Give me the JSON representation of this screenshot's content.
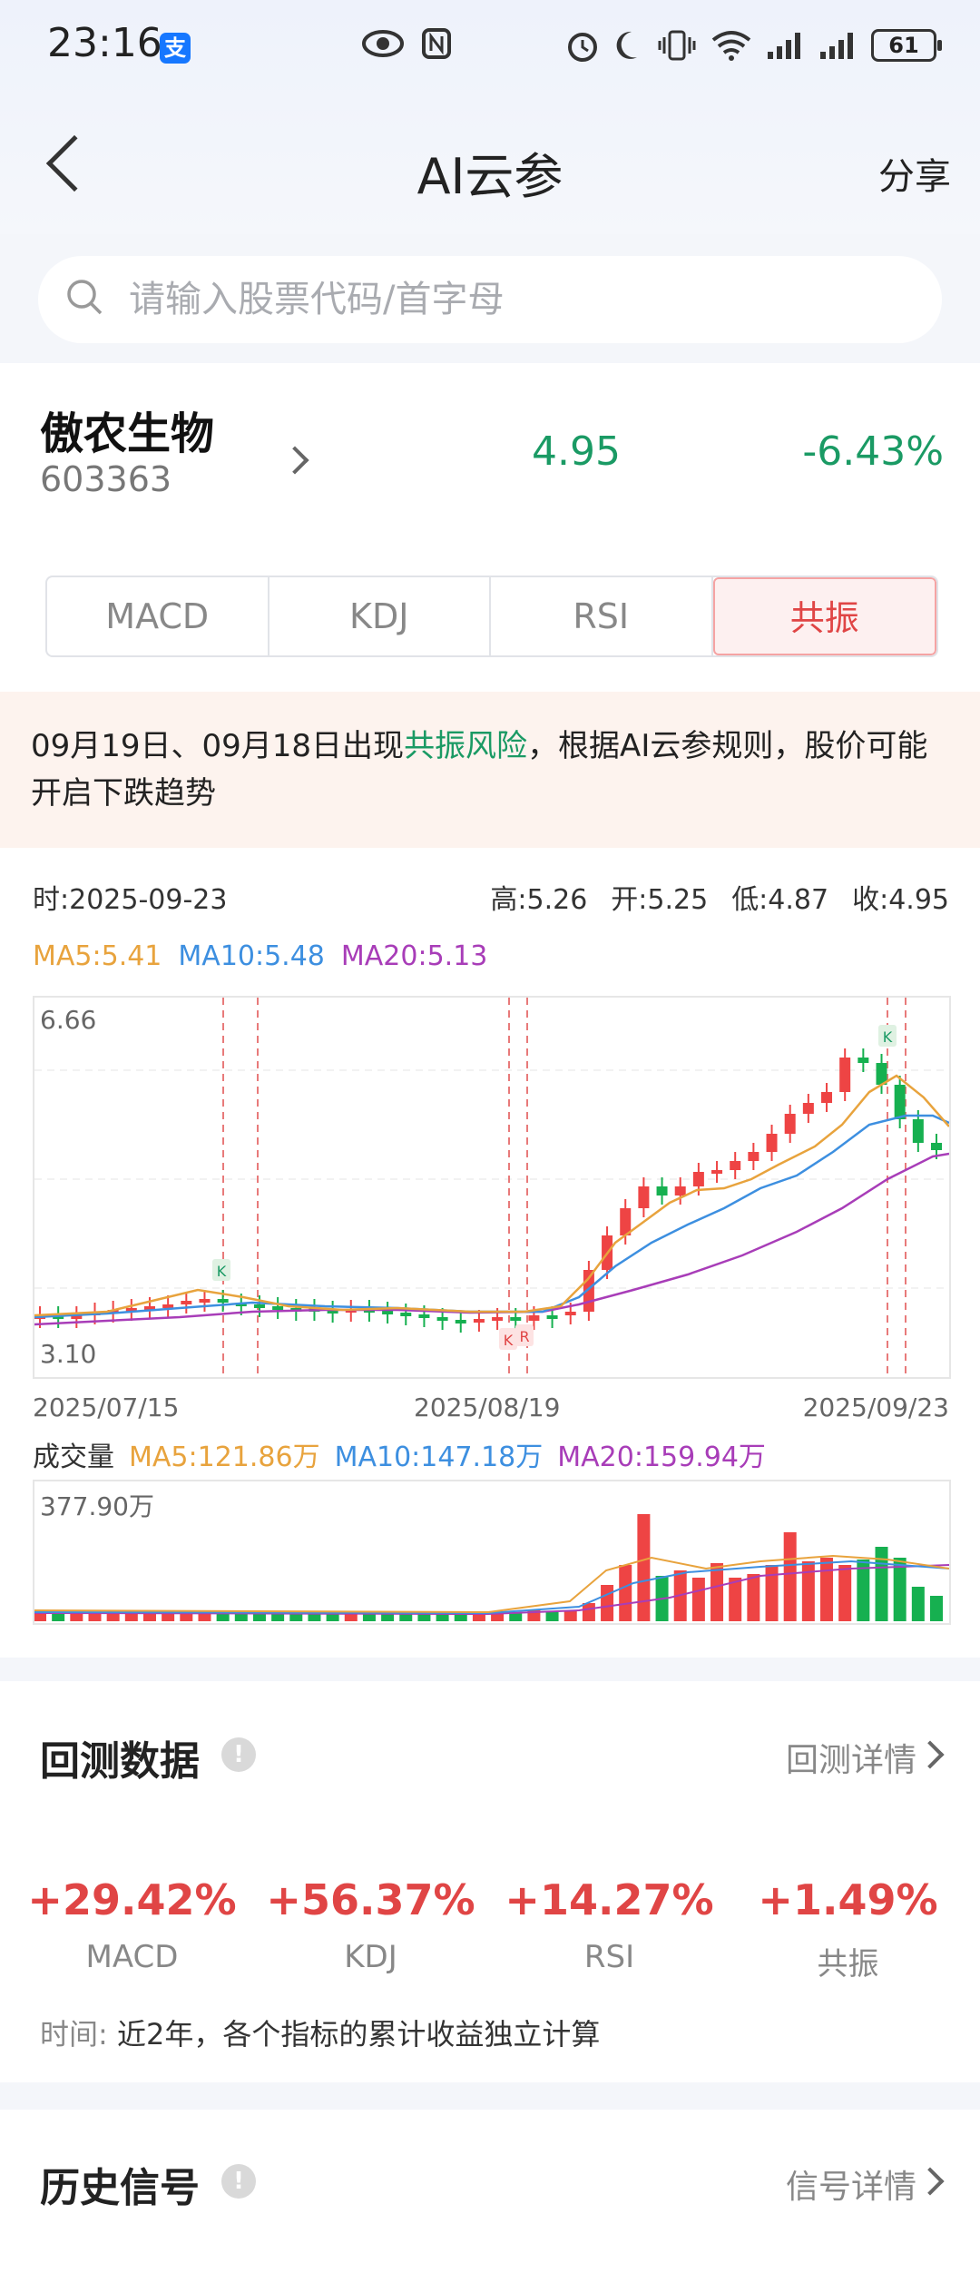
{
  "status_bar": {
    "time": "23:16",
    "battery": "61"
  },
  "header": {
    "title": "AI云参",
    "share": "分享"
  },
  "search": {
    "placeholder": "请输入股票代码/首字母"
  },
  "stock": {
    "name": "傲农生物",
    "code": "603363",
    "price": "4.95",
    "change": "-6.43%"
  },
  "tabs": [
    {
      "label": "MACD"
    },
    {
      "label": "KDJ"
    },
    {
      "label": "RSI"
    },
    {
      "label": "共振"
    }
  ],
  "alert": {
    "prefix": "09月19日、09月18日出现",
    "highlight": "共振风险",
    "suffix": "，根据AI云参规则，股价可能开启下跌趋势"
  },
  "quote": {
    "time": "时:2025-09-23",
    "high": "高:5.26",
    "open": "开:5.25",
    "low": "低:4.87",
    "close": "收:4.95"
  },
  "ma": {
    "ma5": "MA5:5.41",
    "ma10": "MA10:5.48",
    "ma20": "MA20:5.13"
  },
  "colors": {
    "ma5": "#e8a33d",
    "ma10": "#3d8fe0",
    "ma20": "#a83db8",
    "up": "#ee4444",
    "down": "#16b050"
  },
  "chart_data": {
    "type": "candlestick",
    "y_max_label": "6.66",
    "y_min_label": "3.10",
    "x_labels": [
      "2025/07/15",
      "2025/08/19",
      "2025/09/23"
    ],
    "signal_markers": [
      "K",
      "K",
      "R",
      "K"
    ],
    "volume_max_label": "377.90万"
  },
  "volume": {
    "title": "成交量",
    "ma5": "MA5:121.86万",
    "ma10": "MA10:147.18万",
    "ma20": "MA20:159.94万"
  },
  "backtest": {
    "title": "回测数据",
    "detail": "回测详情",
    "items": [
      {
        "value": "+29.42%",
        "label": "MACD"
      },
      {
        "value": "+56.37%",
        "label": "KDJ"
      },
      {
        "value": "+14.27%",
        "label": "RSI"
      },
      {
        "value": "+1.49%",
        "label": "共振"
      }
    ],
    "note_key": "时间:",
    "note_val": "近2年，各个指标的累计收益独立计算"
  },
  "history": {
    "title": "历史信号",
    "detail": "信号详情"
  }
}
